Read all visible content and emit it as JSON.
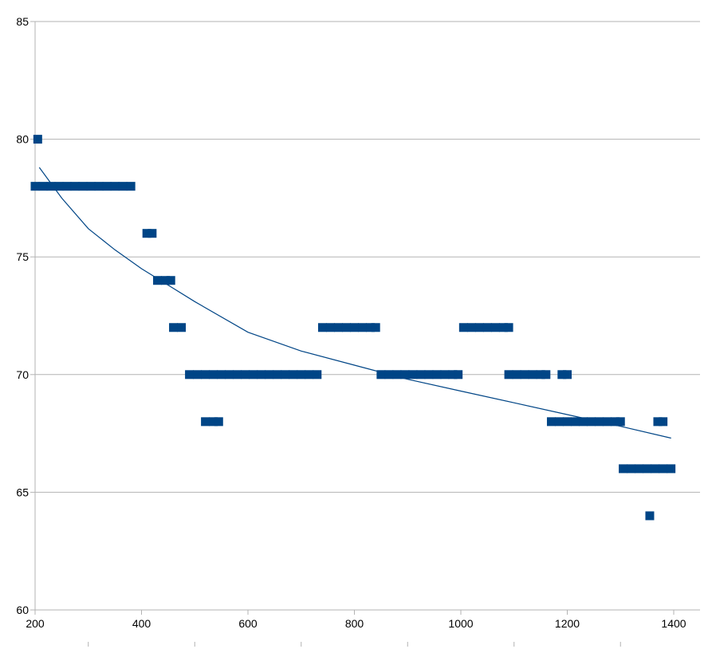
{
  "chart_data": {
    "type": "scatter",
    "title": "",
    "xlabel": "",
    "ylabel": "",
    "xlim": [
      200,
      1400
    ],
    "ylim": [
      60,
      85
    ],
    "x_ticks": [
      "200",
      "400",
      "600",
      "800",
      "1000",
      "1200",
      "1400"
    ],
    "y_ticks": [
      "60",
      "65",
      "70",
      "75",
      "80",
      "85"
    ],
    "grid": "horizontal",
    "legend": "none",
    "colors": {
      "points": "#004586",
      "trendline": "#004586",
      "grid": "#b3b3b3"
    },
    "series": [
      {
        "points": [
          [
            205,
            80
          ],
          [
            200,
            78
          ],
          [
            215,
            78
          ],
          [
            230,
            78
          ],
          [
            245,
            78
          ],
          [
            260,
            78
          ],
          [
            275,
            78
          ],
          [
            290,
            78
          ],
          [
            305,
            78
          ],
          [
            320,
            78
          ],
          [
            335,
            78
          ],
          [
            350,
            78
          ],
          [
            365,
            78
          ],
          [
            380,
            78
          ],
          [
            410,
            76
          ],
          [
            420,
            76
          ],
          [
            430,
            74
          ],
          [
            445,
            74
          ],
          [
            455,
            74
          ],
          [
            460,
            72
          ],
          [
            475,
            72
          ],
          [
            490,
            70
          ],
          [
            505,
            70
          ],
          [
            520,
            70
          ],
          [
            535,
            70
          ],
          [
            550,
            70
          ],
          [
            565,
            70
          ],
          [
            580,
            70
          ],
          [
            595,
            70
          ],
          [
            610,
            70
          ],
          [
            625,
            70
          ],
          [
            640,
            70
          ],
          [
            655,
            70
          ],
          [
            670,
            70
          ],
          [
            685,
            70
          ],
          [
            700,
            70
          ],
          [
            715,
            70
          ],
          [
            730,
            70
          ],
          [
            520,
            68
          ],
          [
            535,
            68
          ],
          [
            545,
            68
          ],
          [
            740,
            72
          ],
          [
            755,
            72
          ],
          [
            770,
            72
          ],
          [
            785,
            72
          ],
          [
            800,
            72
          ],
          [
            815,
            72
          ],
          [
            830,
            72
          ],
          [
            840,
            72
          ],
          [
            850,
            70
          ],
          [
            865,
            70
          ],
          [
            880,
            70
          ],
          [
            895,
            70
          ],
          [
            910,
            70
          ],
          [
            925,
            70
          ],
          [
            940,
            70
          ],
          [
            955,
            70
          ],
          [
            970,
            70
          ],
          [
            985,
            70
          ],
          [
            995,
            70
          ],
          [
            1005,
            72
          ],
          [
            1020,
            72
          ],
          [
            1035,
            72
          ],
          [
            1050,
            72
          ],
          [
            1065,
            72
          ],
          [
            1080,
            72
          ],
          [
            1090,
            72
          ],
          [
            1090,
            70
          ],
          [
            1105,
            70
          ],
          [
            1120,
            70
          ],
          [
            1135,
            70
          ],
          [
            1150,
            70
          ],
          [
            1160,
            70
          ],
          [
            1190,
            70
          ],
          [
            1200,
            70
          ],
          [
            1170,
            68
          ],
          [
            1185,
            68
          ],
          [
            1200,
            68
          ],
          [
            1215,
            68
          ],
          [
            1230,
            68
          ],
          [
            1245,
            68
          ],
          [
            1260,
            68
          ],
          [
            1275,
            68
          ],
          [
            1290,
            68
          ],
          [
            1300,
            68
          ],
          [
            1305,
            66
          ],
          [
            1320,
            66
          ],
          [
            1335,
            66
          ],
          [
            1350,
            66
          ],
          [
            1365,
            66
          ],
          [
            1380,
            66
          ],
          [
            1395,
            66
          ],
          [
            1370,
            68
          ],
          [
            1380,
            68
          ],
          [
            1355,
            64
          ]
        ]
      }
    ],
    "trendline": {
      "type": "log",
      "samples": [
        [
          208,
          78.8
        ],
        [
          250,
          77.5
        ],
        [
          300,
          76.2
        ],
        [
          350,
          75.3
        ],
        [
          400,
          74.5
        ],
        [
          450,
          73.8
        ],
        [
          500,
          73.1
        ],
        [
          600,
          71.8
        ],
        [
          700,
          71.0
        ],
        [
          800,
          70.4
        ],
        [
          900,
          69.8
        ],
        [
          1000,
          69.3
        ],
        [
          1100,
          68.8
        ],
        [
          1200,
          68.3
        ],
        [
          1300,
          67.8
        ],
        [
          1395,
          67.3
        ]
      ]
    }
  }
}
